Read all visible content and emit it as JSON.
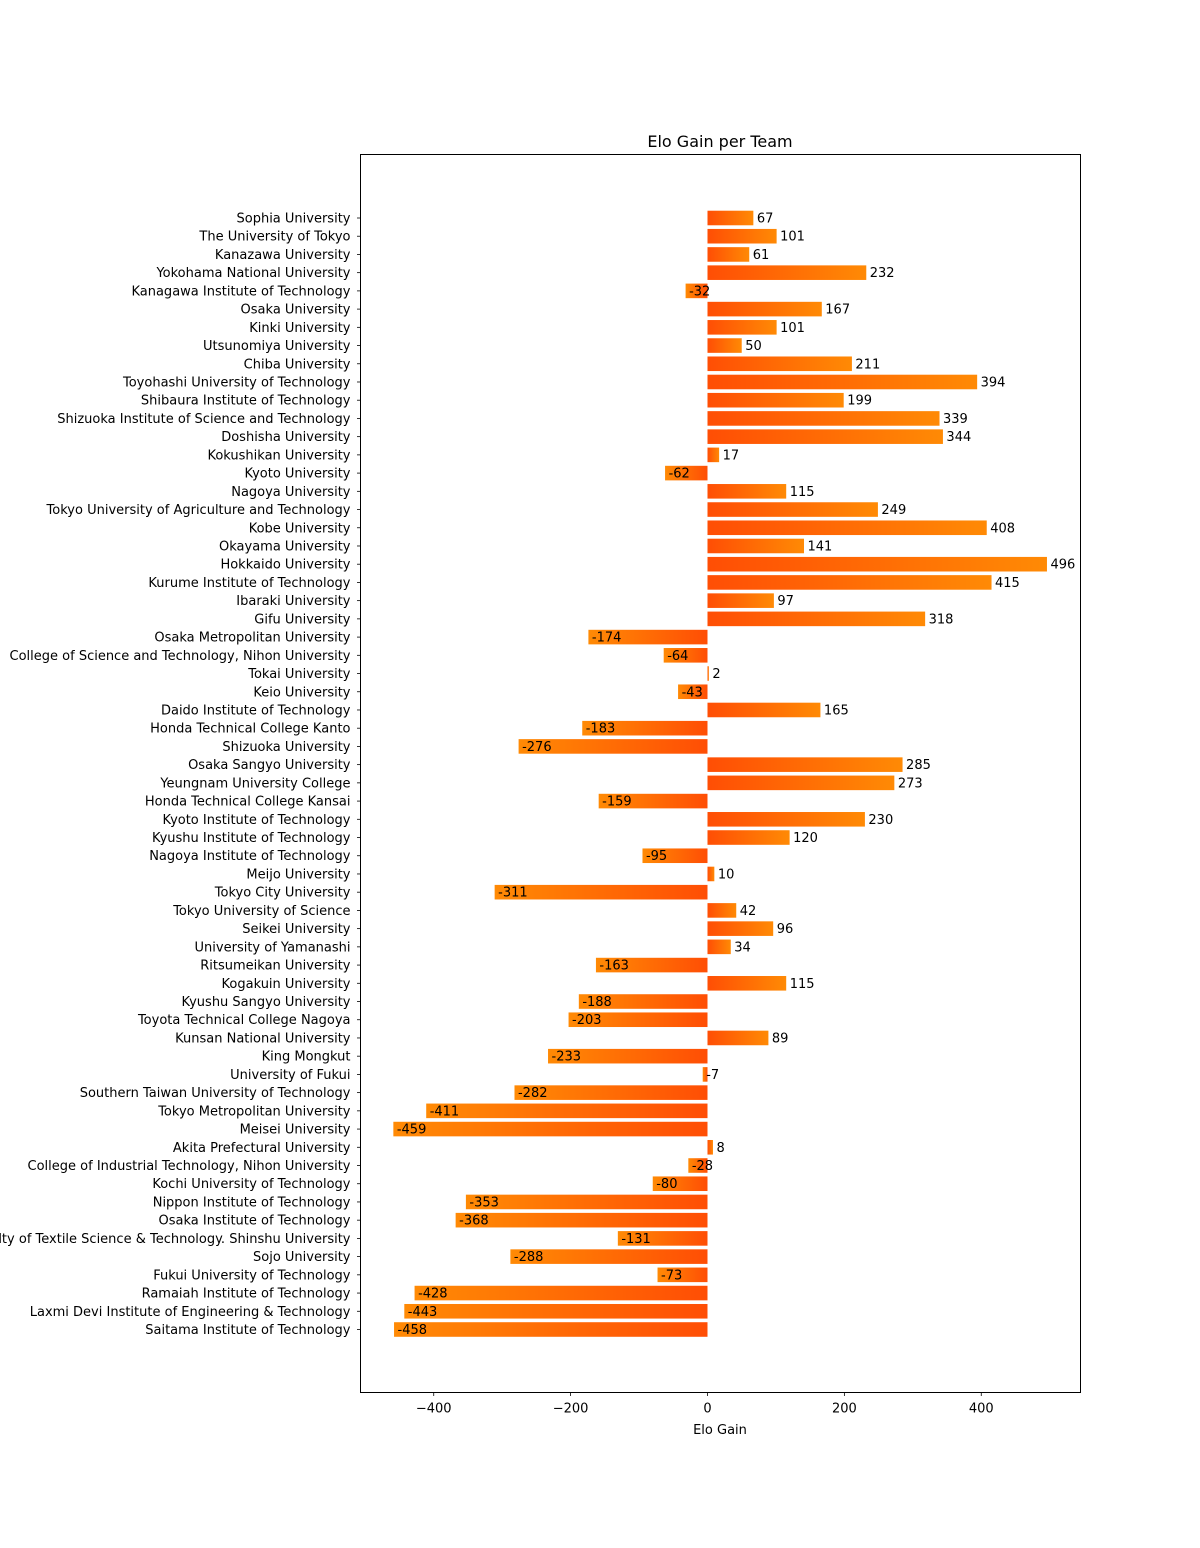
{
  "chart_data": {
    "type": "bar",
    "orientation": "horizontal",
    "title": "Elo Gain per Team",
    "xlabel": "Elo Gain",
    "ylabel": "",
    "xlim": [
      -507,
      545
    ],
    "xticks": [
      -400,
      -200,
      0,
      200,
      400
    ],
    "xtick_labels": [
      "−400",
      "−200",
      "0",
      "200",
      "400"
    ],
    "grid": false,
    "bar_gradient": {
      "inner": "#ff4e05",
      "outer": "#ff8a05"
    },
    "categories": [
      "Sophia University",
      "The University of Tokyo",
      "Kanazawa University",
      "Yokohama National University",
      "Kanagawa Institute of Technology",
      "Osaka University",
      "Kinki University",
      "Utsunomiya University",
      "Chiba University",
      "Toyohashi University of Technology",
      "Shibaura Institute of Technology",
      "Shizuoka Institute of Science and Technology",
      "Doshisha University",
      "Kokushikan University",
      "Kyoto University",
      "Nagoya University",
      "Tokyo University of Agriculture and Technology",
      "Kobe University",
      "Okayama University",
      "Hokkaido University",
      "Kurume Institute of Technology",
      "Ibaraki University",
      "Gifu University",
      "Osaka Metropolitan University",
      "College of Science and Technology, Nihon University",
      "Tokai University",
      "Keio University",
      "Daido Institute of Technology",
      "Honda Technical College Kanto",
      "Shizuoka University",
      "Osaka Sangyo University",
      "Yeungnam University College",
      "Honda Technical College Kansai",
      "Kyoto Institute of Technology",
      "Kyushu Institute of Technology",
      "Nagoya Institute of Technology",
      "Meijo University",
      "Tokyo City University",
      "Tokyo University of Science",
      "Seikei University",
      "University of Yamanashi",
      "Ritsumeikan University",
      "Kogakuin University",
      "Kyushu Sangyo University",
      "Toyota Technical College Nagoya",
      "Kunsan National University",
      "King Mongkut",
      "University of Fukui",
      "Southern Taiwan University of Technology",
      "Tokyo Metropolitan University",
      "Meisei University",
      "Akita Prefectural University",
      "College of Industrial Technology, Nihon University",
      "Kochi University of Technology",
      "Nippon Institute of Technology",
      "Osaka Institute of Technology",
      "Faculty of Textile Science & Technology. Shinshu University",
      "Sojo University",
      "Fukui University of Technology",
      "Ramaiah Institute of Technology",
      "Laxmi Devi Institute of Engineering & Technology",
      "Saitama Institute of Technology"
    ],
    "values": [
      67,
      101,
      61,
      232,
      -32,
      167,
      101,
      50,
      211,
      394,
      199,
      339,
      344,
      17,
      -62,
      115,
      249,
      408,
      141,
      496,
      415,
      97,
      318,
      -174,
      -64,
      2,
      -43,
      165,
      -183,
      -276,
      285,
      273,
      -159,
      230,
      120,
      -95,
      10,
      -311,
      42,
      96,
      34,
      -163,
      115,
      -188,
      -203,
      89,
      -233,
      -7,
      -282,
      -411,
      -459,
      8,
      -28,
      -80,
      -353,
      -368,
      -131,
      -288,
      -73,
      -428,
      -443,
      -458
    ]
  }
}
